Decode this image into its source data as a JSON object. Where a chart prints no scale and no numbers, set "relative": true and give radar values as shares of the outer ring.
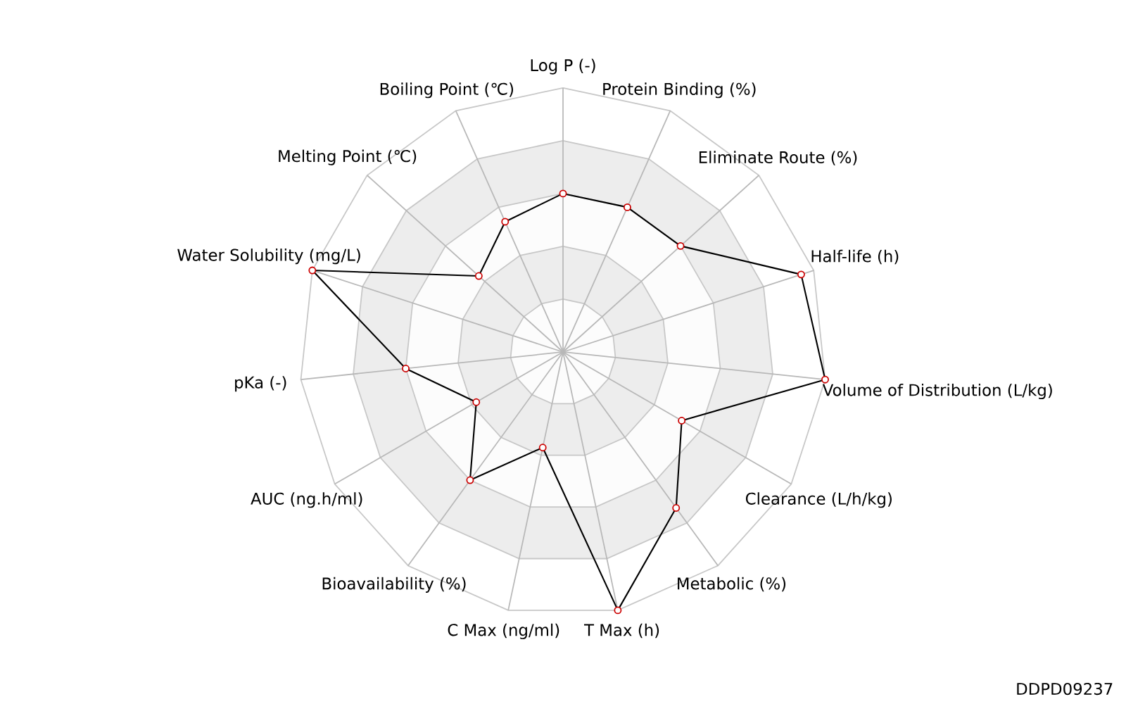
{
  "chart_data": {
    "type": "radar",
    "relative": true,
    "marker": "circle",
    "categories": [
      "Log P (-)",
      "Protein Binding (%)",
      "Eliminate Route (%)",
      "Half-life (h)",
      "Volume of Distribution (L/kg)",
      "Clearance (L/h/kg)",
      "Metabolic (%)",
      "T Max (h)",
      "C Max (ng/ml)",
      "Bioavailability (%)",
      "AUC (ng.h/ml)",
      "pKa (-)",
      "Water Solubility (mg/L)",
      "Melting Point (℃)",
      "Boiling Point (℃)"
    ],
    "series": [
      {
        "color": "#000000",
        "values": [
          0.6,
          0.6,
          0.6,
          0.95,
          1.0,
          0.52,
          0.73,
          1.0,
          0.37,
          0.6,
          0.38,
          0.6,
          1.0,
          0.43,
          0.54
        ]
      }
    ],
    "annotations": [
      "DDPD09237"
    ]
  }
}
